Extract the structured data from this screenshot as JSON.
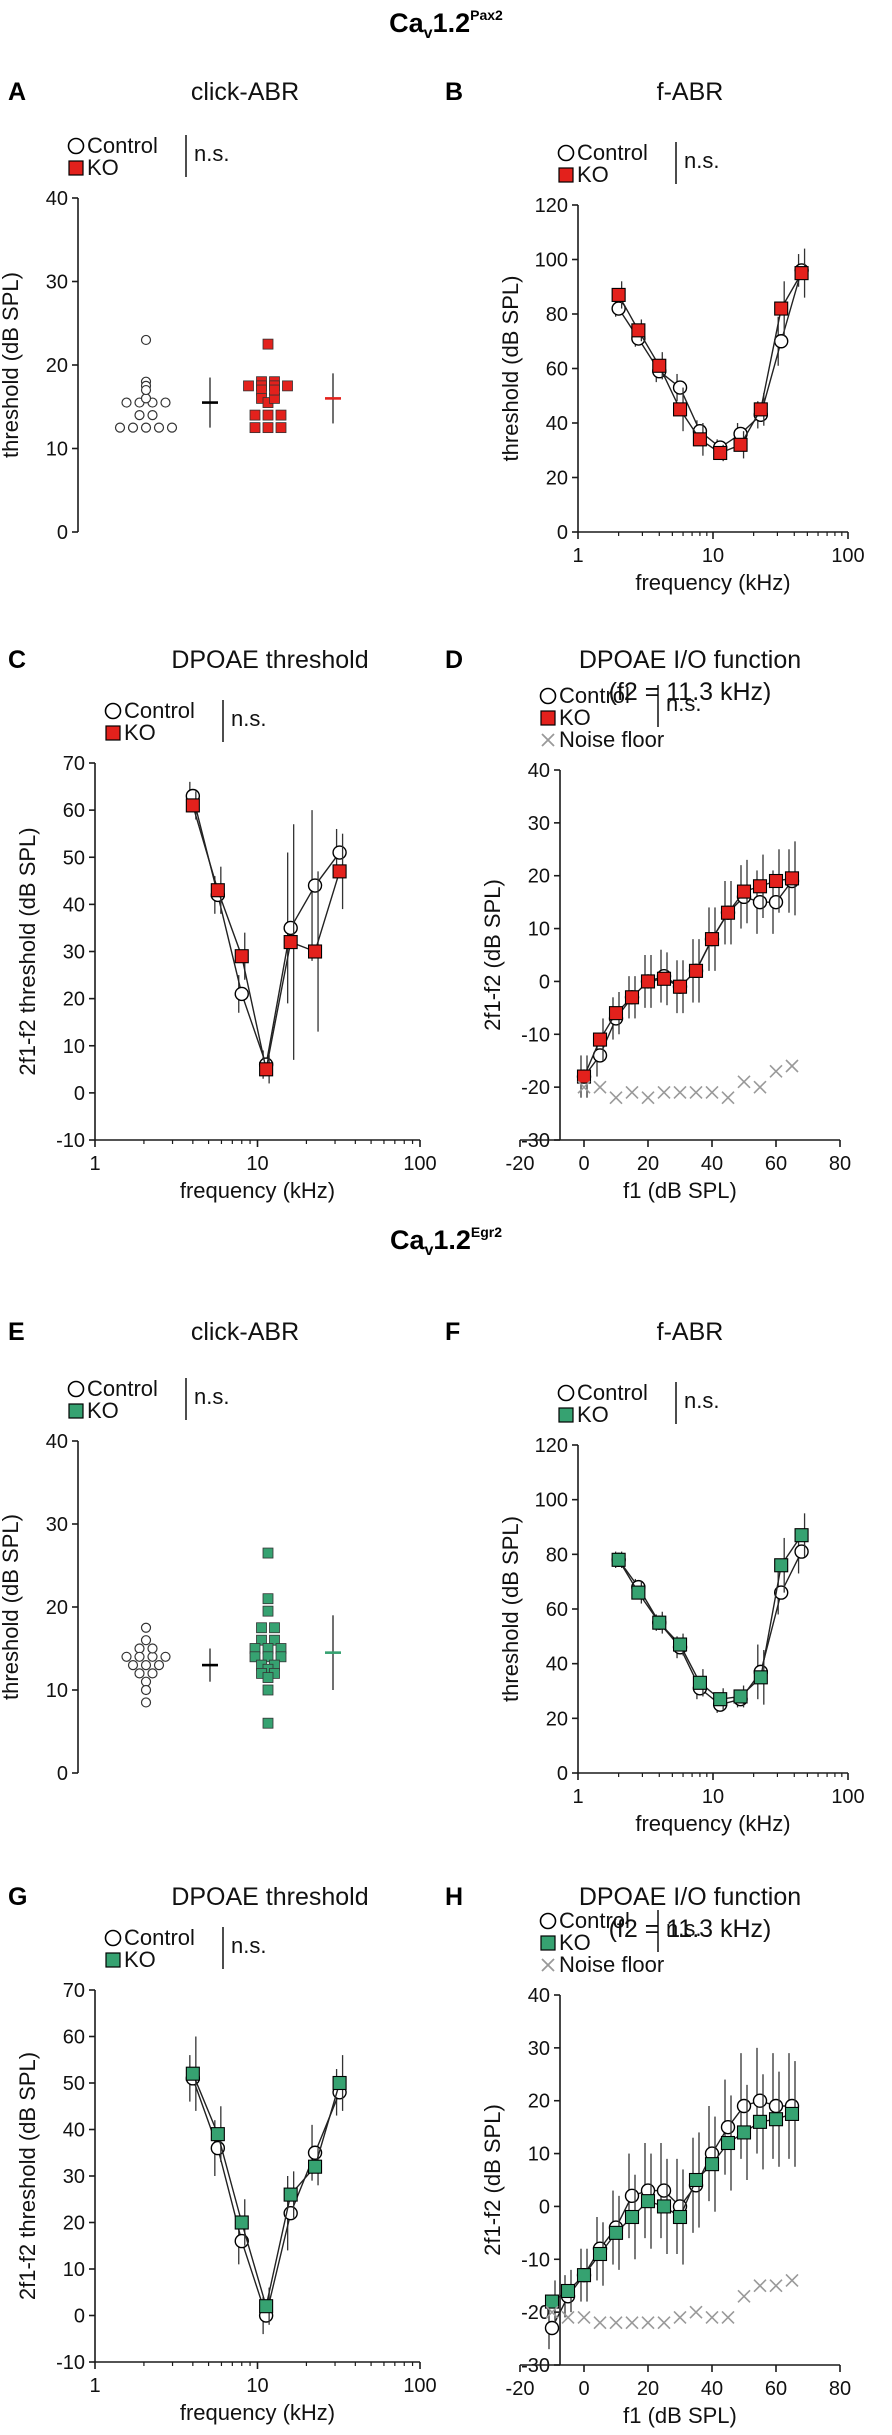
{
  "colors": {
    "ko_red": "#e3211c",
    "ko_green": "#36a271",
    "control": "#ffffff",
    "noise": "#999999",
    "axis": "#1a1a1a",
    "err": "#333333"
  },
  "sections": [
    {
      "title_main": "Ca",
      "title_sub": "v",
      "title_ver": "1.2",
      "title_sup": "Pax2"
    },
    {
      "title_main": "Ca",
      "title_sub": "v",
      "title_ver": "1.2",
      "title_sup": "Egr2"
    }
  ],
  "chart_data": [
    {
      "panel": "A",
      "type": "scatter",
      "title": "click-ABR",
      "title2": "",
      "xlabel": "",
      "ylabel": "threshold (dB SPL)",
      "ylim": [
        0,
        40
      ],
      "yticks": [
        0,
        10,
        20,
        30,
        40
      ],
      "legend": [
        "Control",
        "KO"
      ],
      "significance": "n.s.",
      "ko_color": "#e3211c",
      "control_points": [
        23,
        18,
        17.5,
        15.5,
        15.5,
        15.5,
        15.5,
        14,
        14,
        12.5,
        12.5,
        12.5,
        12.5,
        12.5,
        16,
        17
      ],
      "control_summary": {
        "mean": 15.5,
        "sd": 3
      },
      "ko_points": [
        22.5,
        18,
        18,
        17.5,
        17.5,
        17.5,
        17.5,
        17,
        16,
        15.5,
        14,
        14,
        14,
        12.5,
        12.5,
        12.5,
        16,
        17
      ],
      "ko_summary": {
        "mean": 16,
        "sd": 3
      }
    },
    {
      "panel": "B",
      "type": "line",
      "title": "f-ABR",
      "title2": "",
      "xlabel": "frequency (kHz)",
      "ylabel": "threshold (dB SPL)",
      "xlog": true,
      "xlim": [
        1,
        100
      ],
      "xticks": [
        1,
        10,
        100
      ],
      "ylim": [
        0,
        120
      ],
      "yticks": [
        0,
        20,
        40,
        60,
        80,
        100,
        120
      ],
      "legend": [
        "Control",
        "KO"
      ],
      "significance": "n.s.",
      "ko_color": "#e3211c",
      "x": [
        2,
        2.8,
        4,
        5.7,
        8,
        11.3,
        16,
        22.6,
        32,
        45.3
      ],
      "series": [
        {
          "name": "Control",
          "values": [
            82,
            71,
            59,
            53,
            37,
            31,
            36,
            43,
            70,
            96
          ],
          "err": [
            3,
            3,
            4,
            5,
            4,
            3,
            4,
            5,
            9,
            6
          ]
        },
        {
          "name": "KO",
          "values": [
            87,
            74,
            61,
            45,
            34,
            29,
            32,
            45,
            82,
            95
          ],
          "err": [
            5,
            4,
            5,
            8,
            6,
            3,
            5,
            6,
            10,
            9
          ]
        }
      ]
    },
    {
      "panel": "C",
      "type": "line",
      "title": "DPOAE threshold",
      "title2": "",
      "xlabel": "frequency (kHz)",
      "ylabel": "2f1-f2 threshold (dB SPL)",
      "xlog": true,
      "xlim": [
        1,
        100
      ],
      "xticks": [
        1,
        10,
        100
      ],
      "ylim": [
        -10,
        70
      ],
      "yticks": [
        -10,
        0,
        10,
        20,
        30,
        40,
        50,
        60,
        70
      ],
      "legend": [
        "Control",
        "KO"
      ],
      "significance": "n.s.",
      "ko_color": "#e3211c",
      "x": [
        4,
        5.7,
        8,
        11.3,
        16,
        22.6,
        32
      ],
      "series": [
        {
          "name": "Control",
          "values": [
            63,
            42,
            21,
            6,
            35,
            44,
            51
          ],
          "err": [
            3,
            4,
            4,
            3,
            16,
            16,
            5
          ]
        },
        {
          "name": "KO",
          "values": [
            61,
            43,
            29,
            5,
            32,
            30,
            47
          ],
          "err": [
            3,
            5,
            5,
            3,
            25,
            17,
            8
          ]
        }
      ]
    },
    {
      "panel": "D",
      "type": "line",
      "title": "DPOAE I/O function",
      "title2": "(f2 = 11.3 kHz)",
      "xlabel": "f1 (dB SPL)",
      "ylabel": "2f1-f2 (dB SPL)",
      "xlim": [
        -20,
        80
      ],
      "xticks": [
        -20,
        0,
        20,
        40,
        60,
        80
      ],
      "ylim": [
        -30,
        40
      ],
      "yticks": [
        -30,
        -20,
        -10,
        0,
        10,
        20,
        30,
        40
      ],
      "legend": [
        "Control",
        "KO",
        "Noise floor"
      ],
      "significance": "n.s.",
      "ko_color": "#e3211c",
      "x": [
        0,
        5,
        10,
        15,
        20,
        25,
        30,
        35,
        40,
        45,
        50,
        55,
        60,
        65
      ],
      "series": [
        {
          "name": "Control",
          "values": [
            -18,
            -14,
            -7,
            -3,
            0,
            1,
            -1,
            2,
            8,
            13,
            16,
            15,
            15,
            19
          ],
          "err": [
            4,
            4,
            4,
            4,
            5,
            5,
            5,
            6,
            6,
            6,
            6,
            6,
            6,
            6
          ]
        },
        {
          "name": "KO",
          "values": [
            -18,
            -11,
            -6,
            -3,
            0,
            0.5,
            -1,
            2,
            8,
            13,
            17,
            18,
            19,
            19.5
          ],
          "err": [
            4,
            4,
            4,
            4,
            5,
            5,
            5,
            6,
            6,
            6,
            6,
            6,
            6,
            7
          ]
        },
        {
          "name": "Noise floor",
          "values": [
            -20,
            -20,
            -22,
            -21,
            -22,
            -21,
            -21,
            -21,
            -21,
            -22,
            -19,
            -20,
            -17,
            -16
          ],
          "err": []
        }
      ]
    },
    {
      "panel": "E",
      "type": "scatter",
      "title": "click-ABR",
      "title2": "",
      "xlabel": "",
      "ylabel": "threshold (dB SPL)",
      "ylim": [
        0,
        40
      ],
      "yticks": [
        0,
        10,
        20,
        30,
        40
      ],
      "legend": [
        "Control",
        "KO"
      ],
      "significance": "n.s.",
      "ko_color": "#36a271",
      "control_points": [
        17.5,
        16,
        15,
        14,
        14,
        14,
        14,
        13,
        13,
        13,
        12,
        12,
        11,
        10,
        8.5,
        15
      ],
      "control_summary": {
        "mean": 13,
        "sd": 2
      },
      "ko_points": [
        26.5,
        21,
        19.5,
        17.5,
        17.5,
        16,
        16,
        15,
        15,
        15,
        14,
        14,
        14,
        13,
        13,
        12.5,
        12,
        12,
        11.5,
        10,
        6
      ],
      "ko_summary": {
        "mean": 14.5,
        "sd": 4.5
      }
    },
    {
      "panel": "F",
      "type": "line",
      "title": "f-ABR",
      "title2": "",
      "xlabel": "frequency (kHz)",
      "ylabel": "threshold (dB SPL)",
      "xlog": true,
      "xlim": [
        1,
        100
      ],
      "xticks": [
        1,
        10,
        100
      ],
      "ylim": [
        0,
        120
      ],
      "yticks": [
        0,
        20,
        40,
        60,
        80,
        100,
        120
      ],
      "legend": [
        "Control",
        "KO"
      ],
      "significance": "n.s.",
      "ko_color": "#36a271",
      "x": [
        2,
        2.8,
        4,
        5.7,
        8,
        11.3,
        16,
        22.6,
        32,
        45.3
      ],
      "series": [
        {
          "name": "Control",
          "values": [
            78,
            68,
            55,
            46,
            31,
            25,
            27,
            37,
            66,
            81
          ],
          "err": [
            3,
            3,
            3,
            4,
            4,
            3,
            3,
            10,
            8,
            8
          ]
        },
        {
          "name": "KO",
          "values": [
            78,
            66,
            55,
            47,
            33,
            27,
            28,
            35,
            76,
            87
          ],
          "err": [
            3,
            4,
            4,
            4,
            5,
            4,
            4,
            10,
            10,
            8
          ]
        }
      ]
    },
    {
      "panel": "G",
      "type": "line",
      "title": "DPOAE threshold",
      "title2": "",
      "xlabel": "frequency (kHz)",
      "ylabel": "2f1-f2 threshold (dB SPL)",
      "xlog": true,
      "xlim": [
        1,
        100
      ],
      "xticks": [
        1,
        10,
        100
      ],
      "ylim": [
        -10,
        70
      ],
      "yticks": [
        -10,
        0,
        10,
        20,
        30,
        40,
        50,
        60,
        70
      ],
      "legend": [
        "Control",
        "KO"
      ],
      "significance": "n.s.",
      "ko_color": "#36a271",
      "x": [
        4,
        5.7,
        8,
        11.3,
        16,
        22.6,
        32
      ],
      "series": [
        {
          "name": "Control",
          "values": [
            51,
            36,
            16,
            0,
            22,
            35,
            48
          ],
          "err": [
            5,
            6,
            5,
            4,
            8,
            6,
            5
          ]
        },
        {
          "name": "KO",
          "values": [
            52,
            39,
            20,
            2,
            26,
            32,
            50
          ],
          "err": [
            8,
            6,
            5,
            4,
            5,
            4,
            6
          ]
        }
      ]
    },
    {
      "panel": "H",
      "type": "line",
      "title": "DPOAE I/O function",
      "title2": "(f2 = 11.3 kHz)",
      "xlabel": "f1 (dB SPL)",
      "ylabel": "2f1-f2 (dB SPL)",
      "xlim": [
        -20,
        80
      ],
      "xticks": [
        -20,
        0,
        20,
        40,
        60,
        80
      ],
      "ylim": [
        -30,
        40
      ],
      "yticks": [
        -30,
        -20,
        -10,
        0,
        10,
        20,
        30,
        40
      ],
      "legend": [
        "Control",
        "KO",
        "Noise floor"
      ],
      "significance": "n.s.",
      "ko_color": "#36a271",
      "x": [
        -10,
        -5,
        0,
        5,
        10,
        15,
        20,
        25,
        30,
        35,
        40,
        45,
        50,
        55,
        60,
        65
      ],
      "series": [
        {
          "name": "Control",
          "values": [
            -23,
            -17,
            -13,
            -8,
            -4,
            2,
            3,
            3,
            0,
            4,
            10,
            15,
            19,
            20,
            19,
            19
          ],
          "err": [
            4,
            4,
            5,
            6,
            7,
            8,
            9,
            9,
            9,
            9,
            9,
            9,
            10,
            10,
            10,
            10
          ]
        },
        {
          "name": "KO",
          "values": [
            -18,
            -16,
            -13,
            -9,
            -5,
            -2,
            1,
            0,
            -2,
            5,
            8,
            12,
            14,
            16,
            16.5,
            17.5
          ],
          "err": [
            4,
            4,
            5,
            6,
            7,
            8,
            9,
            9,
            9,
            9,
            9,
            9,
            9,
            9,
            9,
            10
          ]
        },
        {
          "name": "Noise floor",
          "values": [
            -20,
            -21,
            -21,
            -22,
            -22,
            -22,
            -22,
            -22,
            -21,
            -20,
            -21,
            -21,
            -17,
            -15,
            -15,
            -14
          ],
          "err": []
        }
      ]
    }
  ]
}
